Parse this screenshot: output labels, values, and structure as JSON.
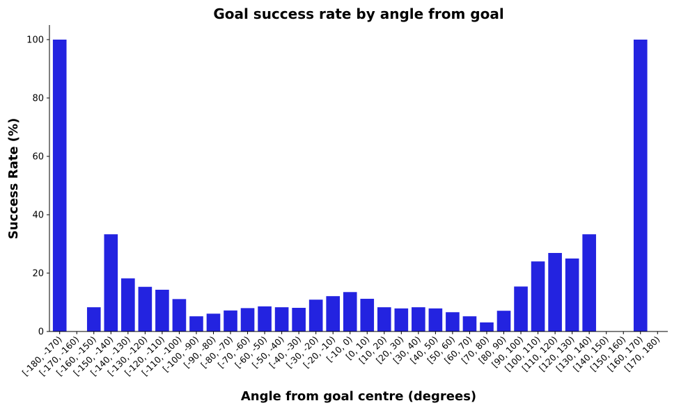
{
  "chart_data": {
    "type": "bar",
    "title": "Goal success rate by angle from goal",
    "xlabel": "Angle from goal centre (degrees)",
    "ylabel": "Success Rate (%)",
    "ylim": [
      0,
      105
    ],
    "yticks": [
      0,
      20,
      40,
      60,
      80,
      100
    ],
    "grid": false,
    "bar_color": "#2323e0",
    "categories": [
      "[-180, -170)",
      "[-170, -160)",
      "[-160, -150)",
      "[-150, -140)",
      "[-140, -130)",
      "[-130, -120)",
      "[-120, -110)",
      "[-110, -100)",
      "[-100, -90)",
      "[-90, -80)",
      "[-80, -70)",
      "[-70, -60)",
      "[-60, -50)",
      "[-50, -40)",
      "[-40, -30)",
      "[-30, -20)",
      "[-20, -10)",
      "[-10, 0)",
      "[0, 10)",
      "[10, 20)",
      "[20, 30)",
      "[30, 40)",
      "[40, 50)",
      "[50, 60)",
      "[60, 70)",
      "[70, 80)",
      "[80, 90)",
      "[90, 100)",
      "[100, 110)",
      "[110, 120)",
      "[120, 130)",
      "[130, 140)",
      "[140, 150)",
      "[150, 160)",
      "[160, 170)",
      "[170, 180)"
    ],
    "values": [
      100,
      0,
      8.3,
      33.3,
      18.2,
      15.3,
      14.3,
      11.1,
      5.2,
      6.1,
      7.2,
      8.0,
      8.6,
      8.3,
      8.1,
      10.9,
      12.1,
      13.5,
      11.2,
      8.3,
      7.9,
      8.3,
      7.9,
      6.6,
      5.2,
      3.1,
      7.1,
      15.4,
      24.0,
      26.9,
      25.0,
      33.3,
      0,
      0,
      100,
      0
    ]
  }
}
